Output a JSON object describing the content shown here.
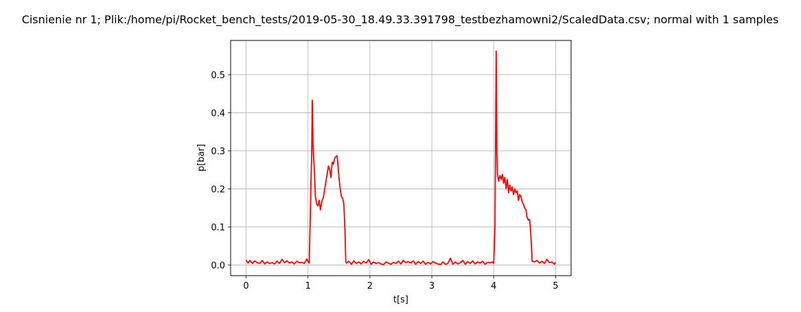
{
  "chart_data": {
    "type": "line",
    "title": "Cisnienie nr 1; Plik:/home/pi/Rocket_bench_tests/2019-05-30_18.49.33.391798_testbezhamowni2/ScaledData.csv; normal with 1 samples",
    "xlabel": "t[s]",
    "ylabel": "p[bar]",
    "xlim": [
      -0.25,
      5.25
    ],
    "ylim": [
      -0.028,
      0.59
    ],
    "xticks": [
      0,
      1,
      2,
      3,
      4,
      5
    ],
    "xtick_labels": [
      "0",
      "1",
      "2",
      "3",
      "4",
      "5"
    ],
    "yticks": [
      0.0,
      0.1,
      0.2,
      0.3,
      0.4,
      0.5
    ],
    "ytick_labels": [
      "0.0",
      "0.1",
      "0.2",
      "0.3",
      "0.4",
      "0.5"
    ],
    "grid": true,
    "series": [
      {
        "color": "#ff0000",
        "x": [
          0.0,
          0.03,
          0.06,
          0.1,
          0.14,
          0.18,
          0.22,
          0.26,
          0.3,
          0.34,
          0.38,
          0.42,
          0.46,
          0.5,
          0.54,
          0.58,
          0.62,
          0.66,
          0.7,
          0.74,
          0.78,
          0.82,
          0.86,
          0.9,
          0.94,
          0.98,
          1.0,
          1.02,
          1.04,
          1.06,
          1.07,
          1.08,
          1.1,
          1.12,
          1.14,
          1.16,
          1.18,
          1.2,
          1.22,
          1.25,
          1.28,
          1.31,
          1.33,
          1.35,
          1.37,
          1.39,
          1.41,
          1.43,
          1.45,
          1.47,
          1.48,
          1.5,
          1.52,
          1.54,
          1.56,
          1.58,
          1.6,
          1.61,
          1.62,
          1.66,
          1.7,
          1.74,
          1.78,
          1.82,
          1.86,
          1.9,
          1.94,
          1.98,
          2.02,
          2.06,
          2.1,
          2.14,
          2.18,
          2.22,
          2.26,
          2.3,
          2.34,
          2.38,
          2.42,
          2.46,
          2.5,
          2.54,
          2.58,
          2.62,
          2.66,
          2.7,
          2.74,
          2.78,
          2.82,
          2.86,
          2.9,
          2.94,
          2.98,
          3.02,
          3.06,
          3.1,
          3.14,
          3.18,
          3.22,
          3.26,
          3.3,
          3.34,
          3.38,
          3.42,
          3.46,
          3.5,
          3.54,
          3.58,
          3.62,
          3.66,
          3.7,
          3.74,
          3.78,
          3.82,
          3.86,
          3.9,
          3.94,
          3.98,
          4.0,
          4.02,
          4.04,
          4.05,
          4.06,
          4.08,
          4.1,
          4.12,
          4.14,
          4.16,
          4.18,
          4.2,
          4.22,
          4.24,
          4.26,
          4.28,
          4.3,
          4.32,
          4.34,
          4.36,
          4.38,
          4.4,
          4.42,
          4.44,
          4.46,
          4.48,
          4.5,
          4.52,
          4.54,
          4.56,
          4.58,
          4.6,
          4.62,
          4.66,
          4.7,
          4.74,
          4.78,
          4.82,
          4.86,
          4.9,
          4.94,
          4.98,
          5.0
        ],
        "y": [
          0.013,
          0.005,
          0.012,
          0.004,
          0.011,
          0.006,
          0.004,
          0.012,
          0.003,
          0.008,
          0.004,
          0.006,
          0.003,
          0.01,
          0.004,
          0.015,
          0.006,
          0.011,
          0.005,
          0.008,
          0.003,
          0.01,
          0.006,
          0.007,
          0.004,
          0.016,
          0.009,
          0.005,
          0.15,
          0.3,
          0.433,
          0.32,
          0.26,
          0.18,
          0.16,
          0.155,
          0.17,
          0.145,
          0.165,
          0.18,
          0.21,
          0.24,
          0.26,
          0.25,
          0.23,
          0.27,
          0.265,
          0.28,
          0.285,
          0.287,
          0.27,
          0.23,
          0.2,
          0.18,
          0.175,
          0.16,
          0.08,
          0.01,
          0.005,
          0.01,
          0.002,
          0.011,
          0.004,
          0.008,
          0.003,
          0.01,
          0.005,
          0.014,
          0.002,
          0.008,
          0.004,
          0.006,
          0.003,
          0.001,
          0.008,
          0.005,
          0.002,
          0.007,
          0.004,
          0.01,
          0.003,
          0.012,
          0.006,
          0.009,
          0.005,
          0.011,
          0.002,
          0.009,
          0.004,
          0.01,
          0.002,
          0.007,
          0.003,
          0.009,
          0.005,
          0.003,
          0.001,
          0.008,
          0.002,
          0.004,
          0.018,
          0.002,
          0.008,
          0.003,
          0.006,
          0.012,
          0.002,
          0.009,
          0.004,
          0.011,
          0.003,
          0.008,
          0.005,
          0.01,
          0.002,
          0.007,
          0.006,
          0.008,
          0.004,
          0.1,
          0.562,
          0.3,
          0.24,
          0.22,
          0.235,
          0.225,
          0.238,
          0.215,
          0.23,
          0.2,
          0.225,
          0.19,
          0.21,
          0.195,
          0.205,
          0.185,
          0.2,
          0.19,
          0.195,
          0.17,
          0.185,
          0.18,
          0.165,
          0.16,
          0.15,
          0.145,
          0.125,
          0.118,
          0.12,
          0.08,
          0.01,
          0.008,
          0.012,
          0.005,
          0.01,
          0.004,
          0.015,
          0.006,
          0.008,
          0.002,
          0.007
        ]
      }
    ]
  }
}
